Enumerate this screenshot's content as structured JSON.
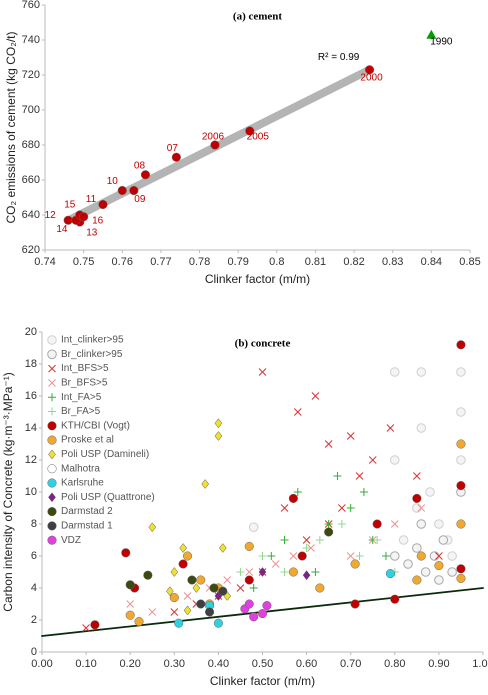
{
  "chart_data": [
    {
      "type": "scatter",
      "title": "(a) cement",
      "xlabel": "Clinker factor (m/m)",
      "ylabel": "CO₂ emissions of cement (kg CO₂/t)",
      "xlim": [
        0.74,
        0.85
      ],
      "xticks": [
        0.74,
        0.75,
        0.76,
        0.77,
        0.78,
        0.79,
        0.8,
        0.81,
        0.82,
        0.83,
        0.84,
        0.85
      ],
      "ylim": [
        620,
        760
      ],
      "yticks": [
        620,
        640,
        660,
        680,
        700,
        720,
        740,
        760
      ],
      "series": [
        {
          "color": "#c00000",
          "marker": "circle",
          "x": [
            0.824,
            0.793,
            0.784,
            0.774,
            0.766,
            0.763,
            0.76,
            0.755,
            0.746,
            0.749,
            0.748,
            0.749,
            0.75
          ],
          "values": [
            723,
            688,
            680,
            673,
            663,
            654,
            654,
            646,
            637,
            636,
            637,
            640,
            639
          ],
          "labels": [
            "2000",
            "2005",
            "2006",
            "07",
            "08",
            "09",
            "10",
            "11",
            "12",
            "13",
            "14",
            "15",
            "16"
          ]
        },
        {
          "color": "#00a000",
          "marker": "triangle",
          "x": [
            0.84
          ],
          "values": [
            743
          ],
          "labels": [
            "1990"
          ]
        }
      ],
      "trendline": {
        "color": "#b4b4b4",
        "x": [
          0.747,
          0.824
        ],
        "values": [
          638,
          723
        ]
      },
      "annotation": "R² = 0.99"
    },
    {
      "type": "scatter",
      "title": "(b) concrete",
      "xlabel": "Clinker factor (m/m)",
      "ylabel": "Carbon intensity of Concrete (kg·m⁻³·MPa⁻¹)",
      "xlim": [
        0,
        1
      ],
      "xticks": [
        {
          "value": 0,
          "label": "0.00"
        },
        {
          "value": 0.1,
          "label": "0.10"
        },
        {
          "value": 0.2,
          "label": "0.20"
        },
        {
          "value": 0.3,
          "label": "0.30"
        },
        {
          "value": 0.4,
          "label": "0.40"
        },
        {
          "value": 0.5,
          "label": "0.50"
        },
        {
          "value": 0.6,
          "label": "0.60"
        },
        {
          "value": 0.7,
          "label": "0.70"
        },
        {
          "value": 0.8,
          "label": "0.80"
        },
        {
          "value": 0.9,
          "label": "0.90"
        },
        {
          "value": 1,
          "label": "1.00"
        }
      ],
      "ylim": [
        0,
        20
      ],
      "yticks": [
        0,
        2,
        4,
        6,
        8,
        10,
        12,
        14,
        16,
        18,
        20
      ],
      "series": [
        {
          "name": "Int_clinker>95",
          "color": "#d0d0d0",
          "marker": "open-circle",
          "x": [
            0.8,
            0.8,
            0.85,
            0.86,
            0.86,
            0.88,
            0.9,
            0.92,
            0.95,
            0.95,
            0.95,
            0.93,
            0.82,
            0.48
          ],
          "values": [
            17.5,
            12,
            9,
            17.5,
            14,
            10,
            8,
            7,
            17.5,
            15,
            12,
            6,
            7,
            7.8
          ]
        },
        {
          "name": "Br_clinker>95",
          "color": "#a8a8a8",
          "marker": "open-circle",
          "x": [
            0.8,
            0.83,
            0.86,
            0.87,
            0.89,
            0.9,
            0.91,
            0.93,
            0.95,
            0.85
          ],
          "values": [
            6,
            5.5,
            8,
            5,
            6,
            4.5,
            7,
            5,
            10,
            6.5
          ]
        },
        {
          "name": "Int_BFS>5",
          "color": "#e03030",
          "marker": "x",
          "x": [
            0.5,
            0.55,
            0.58,
            0.62,
            0.65,
            0.7,
            0.72,
            0.75,
            0.79,
            0.5,
            0.45,
            0.4,
            0.35,
            0.3,
            0.6,
            0.65,
            0.68,
            0.85,
            0.9,
            0.1
          ],
          "values": [
            17.5,
            9,
            15,
            16,
            13,
            13.5,
            11,
            12,
            14,
            5,
            4,
            3.5,
            3,
            2.5,
            7,
            8,
            9,
            11,
            6,
            1.5
          ]
        },
        {
          "name": "Br_BFS>5",
          "color": "#f09090",
          "marker": "x",
          "x": [
            0.2,
            0.25,
            0.33,
            0.38,
            0.42,
            0.47,
            0.53,
            0.57,
            0.61,
            0.7,
            0.75,
            0.8,
            0.86
          ],
          "values": [
            3,
            2.5,
            3.5,
            4,
            4.5,
            5,
            5.5,
            6,
            6.5,
            6,
            7,
            8,
            9
          ]
        },
        {
          "name": "Int_FA>5",
          "color": "#30b030",
          "marker": "plus",
          "x": [
            0.48,
            0.52,
            0.55,
            0.58,
            0.62,
            0.65,
            0.7,
            0.75,
            0.78,
            0.67,
            0.73
          ],
          "values": [
            4,
            6,
            7,
            10,
            5,
            8,
            9,
            7,
            6,
            11,
            10
          ]
        },
        {
          "name": "Br_FA>5",
          "color": "#90d890",
          "marker": "plus",
          "x": [
            0.45,
            0.5,
            0.55,
            0.6,
            0.63,
            0.68,
            0.72,
            0.76,
            0.8
          ],
          "values": [
            5,
            6,
            5,
            6.5,
            7,
            8,
            6,
            7,
            5
          ]
        },
        {
          "name": "KTH/CBI (Vogt)",
          "color": "#c00000",
          "marker": "circle",
          "x": [
            0.19,
            0.21,
            0.32,
            0.47,
            0.57,
            0.59,
            0.71,
            0.76,
            0.8,
            0.85,
            0.95,
            0.95,
            0.95,
            0.12
          ],
          "values": [
            6.2,
            4,
            5.5,
            4.5,
            9.6,
            6,
            3,
            8,
            3.3,
            9.6,
            19.2,
            10.4,
            5.2,
            1.7
          ]
        },
        {
          "name": "Proske et al",
          "color": "#f0a830",
          "marker": "circle",
          "x": [
            0.2,
            0.22,
            0.3,
            0.33,
            0.36,
            0.38,
            0.4,
            0.47,
            0.57,
            0.63,
            0.71,
            0.85,
            0.86,
            0.95,
            0.95,
            0.95,
            0.9
          ],
          "values": [
            2.3,
            1.9,
            3.4,
            6,
            4.5,
            3,
            4,
            6.6,
            5,
            4,
            5.5,
            4.5,
            6,
            13,
            8,
            4.6,
            5.4
          ]
        },
        {
          "name": "Poli USP (Damineli)",
          "color": "#f0e030",
          "marker": "diamond",
          "x": [
            0.25,
            0.29,
            0.3,
            0.32,
            0.35,
            0.37,
            0.4,
            0.4,
            0.41,
            0.42,
            0.38,
            0.33
          ],
          "values": [
            7.8,
            3.8,
            5,
            6.5,
            4,
            10.5,
            14.3,
            13.5,
            6.5,
            3.5,
            2.5,
            2.6
          ]
        },
        {
          "name": "Malhotra",
          "color": "#ffffff",
          "marker": "circle",
          "x": [],
          "values": []
        },
        {
          "name": "Karlsruhe",
          "color": "#30d0e0",
          "marker": "circle",
          "x": [
            0.31,
            0.38,
            0.4,
            0.79
          ],
          "values": [
            1.8,
            2.9,
            1.8,
            4.9
          ]
        },
        {
          "name": "Poli USP (Quattrone)",
          "color": "#80208a",
          "marker": "diamond",
          "x": [
            0.4,
            0.5,
            0.6
          ],
          "values": [
            3.5,
            5,
            4.8
          ]
        },
        {
          "name": "Darmstad 2",
          "color": "#3a4a10",
          "marker": "circle",
          "x": [
            0.2,
            0.24,
            0.34,
            0.39,
            0.65
          ],
          "values": [
            4.2,
            4.8,
            4.5,
            4,
            7.5
          ]
        },
        {
          "name": "Darmstad 1",
          "color": "#404040",
          "marker": "circle",
          "x": [
            0.36,
            0.38,
            0.41
          ],
          "values": [
            3,
            2.5,
            3.8
          ]
        },
        {
          "name": "VDZ",
          "color": "#e040e0",
          "marker": "circle",
          "x": [
            0.46,
            0.47,
            0.48,
            0.5,
            0.51
          ],
          "values": [
            2.7,
            3,
            2.2,
            2.4,
            2.9
          ]
        }
      ],
      "trendline": {
        "color": "#0a2a0a",
        "x": [
          0,
          1
        ],
        "values": [
          1,
          4
        ]
      }
    }
  ]
}
